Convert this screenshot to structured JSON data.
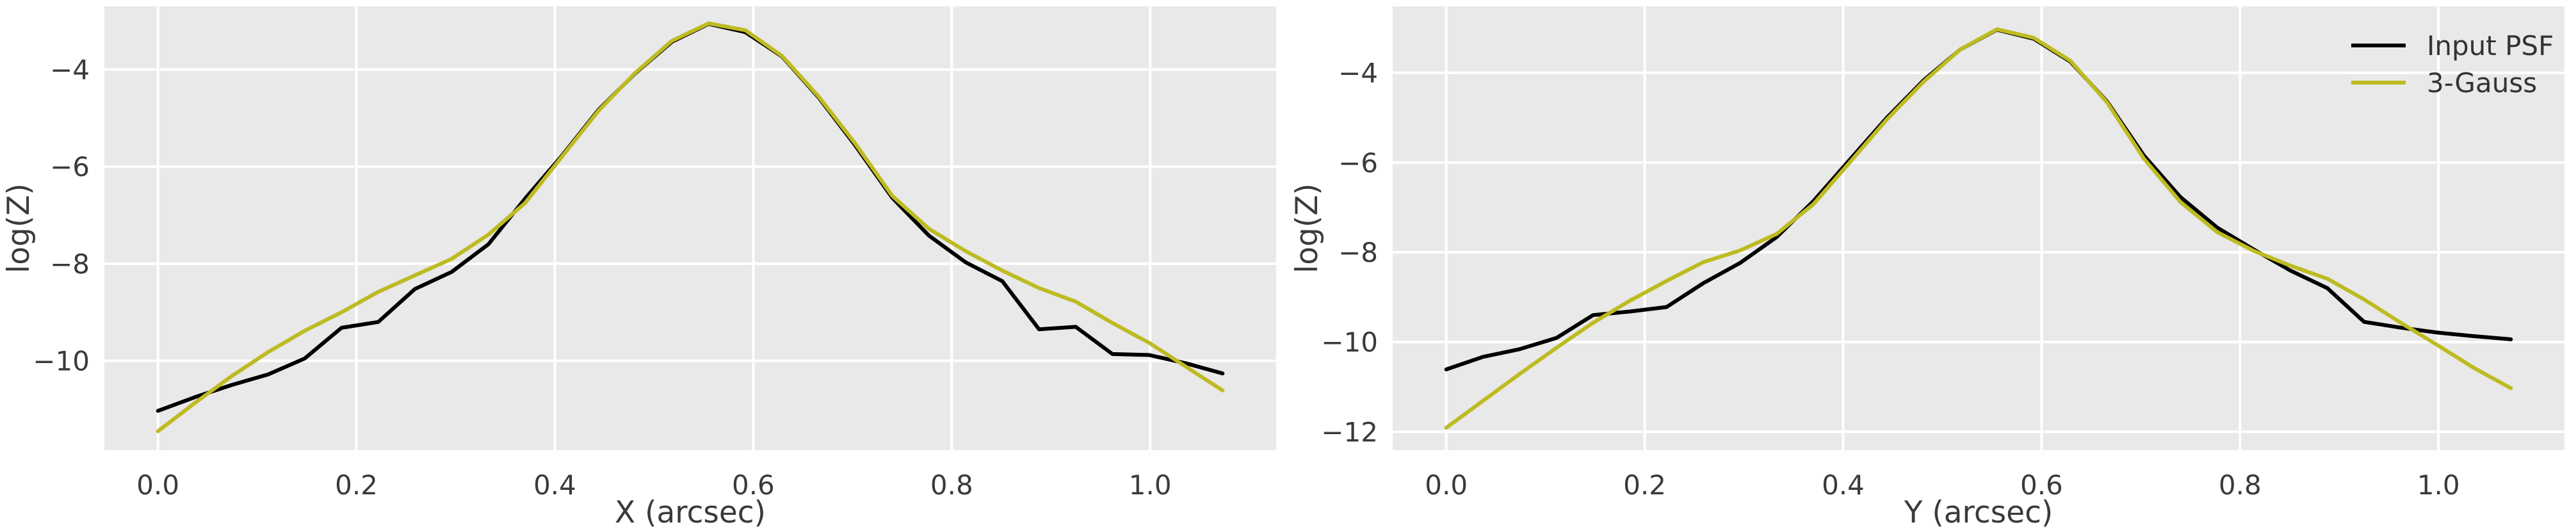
{
  "figure": {
    "background": "#ffffff",
    "axes_background": "#e9e9e9",
    "grid_color": "#ffffff",
    "text_color": "#3a3a3a",
    "curve_black": "#000000",
    "curve_yellow": "#bdbb22",
    "legend_entries": [
      {
        "label": "Input PSF",
        "color": "#000000"
      },
      {
        "label": "3-Gauss",
        "color": "#bdbb22"
      }
    ]
  },
  "chart_data": [
    {
      "type": "line",
      "title": "",
      "xlabel": "X (arcsec)",
      "ylabel": "log(Z)",
      "grid": true,
      "legend": null,
      "xlim": [
        -0.054,
        1.127
      ],
      "ylim": [
        -11.84,
        -2.7
      ],
      "xticks": [
        {
          "value": 0.0,
          "label": "0.0"
        },
        {
          "value": 0.2,
          "label": "0.2"
        },
        {
          "value": 0.4,
          "label": "0.4"
        },
        {
          "value": 0.6,
          "label": "0.6"
        },
        {
          "value": 0.8,
          "label": "0.8"
        },
        {
          "value": 1.0,
          "label": "1.0"
        }
      ],
      "yticks": [
        {
          "value": -4,
          "label": "−4"
        },
        {
          "value": -6,
          "label": "−6"
        },
        {
          "value": -8,
          "label": "−8"
        },
        {
          "value": -10,
          "label": "−10"
        }
      ],
      "x": [
        0.0,
        0.037,
        0.074,
        0.111,
        0.148,
        0.185,
        0.222,
        0.259,
        0.296,
        0.333,
        0.37,
        0.407,
        0.444,
        0.481,
        0.518,
        0.555,
        0.592,
        0.629,
        0.666,
        0.703,
        0.74,
        0.777,
        0.814,
        0.851,
        0.888,
        0.925,
        0.962,
        0.999,
        1.036,
        1.073
      ],
      "series": [
        {
          "name": "Input PSF",
          "color": "#000000",
          "values": [
            -11.03,
            -10.75,
            -10.5,
            -10.28,
            -9.95,
            -9.32,
            -9.2,
            -8.52,
            -8.17,
            -7.6,
            -6.66,
            -5.78,
            -4.83,
            -4.08,
            -3.43,
            -3.06,
            -3.23,
            -3.73,
            -4.58,
            -5.57,
            -6.64,
            -7.42,
            -7.97,
            -8.36,
            -9.35,
            -9.3,
            -9.86,
            -9.88,
            -10.05,
            -10.26
          ]
        },
        {
          "name": "3-Gauss",
          "color": "#bdbb22",
          "values": [
            -11.45,
            -10.87,
            -10.32,
            -9.82,
            -9.38,
            -9.0,
            -8.58,
            -8.24,
            -7.9,
            -7.4,
            -6.75,
            -5.8,
            -4.85,
            -4.07,
            -3.41,
            -3.05,
            -3.19,
            -3.72,
            -4.56,
            -5.53,
            -6.6,
            -7.28,
            -7.74,
            -8.14,
            -8.5,
            -8.78,
            -9.22,
            -9.63,
            -10.12,
            -10.61
          ]
        }
      ]
    },
    {
      "type": "line",
      "title": "",
      "xlabel": "Y (arcsec)",
      "ylabel": "log(Z)",
      "grid": true,
      "legend": {
        "position": "upper right"
      },
      "xlim": [
        -0.054,
        1.127
      ],
      "ylim": [
        -12.41,
        -2.52
      ],
      "xticks": [
        {
          "value": 0.0,
          "label": "0.0"
        },
        {
          "value": 0.2,
          "label": "0.2"
        },
        {
          "value": 0.4,
          "label": "0.4"
        },
        {
          "value": 0.6,
          "label": "0.6"
        },
        {
          "value": 0.8,
          "label": "0.8"
        },
        {
          "value": 1.0,
          "label": "1.0"
        }
      ],
      "yticks": [
        {
          "value": -4,
          "label": "−4"
        },
        {
          "value": -6,
          "label": "−6"
        },
        {
          "value": -8,
          "label": "−8"
        },
        {
          "value": -10,
          "label": "−10"
        },
        {
          "value": -12,
          "label": "−12"
        }
      ],
      "x": [
        0.0,
        0.037,
        0.074,
        0.111,
        0.148,
        0.185,
        0.222,
        0.259,
        0.296,
        0.333,
        0.37,
        0.407,
        0.444,
        0.481,
        0.518,
        0.555,
        0.592,
        0.629,
        0.666,
        0.703,
        0.74,
        0.777,
        0.814,
        0.851,
        0.888,
        0.925,
        0.962,
        0.999,
        1.036,
        1.073
      ],
      "series": [
        {
          "name": "Input PSF",
          "color": "#000000",
          "values": [
            -10.61,
            -10.33,
            -10.16,
            -9.91,
            -9.4,
            -9.32,
            -9.22,
            -8.69,
            -8.24,
            -7.66,
            -6.86,
            -5.93,
            -5.0,
            -4.17,
            -3.48,
            -3.04,
            -3.24,
            -3.75,
            -4.64,
            -5.84,
            -6.77,
            -7.45,
            -7.94,
            -8.41,
            -8.8,
            -9.55,
            -9.68,
            -9.79,
            -9.87,
            -9.94
          ]
        },
        {
          "name": "3-Gauss",
          "color": "#bdbb22",
          "values": [
            -11.91,
            -11.31,
            -10.71,
            -10.13,
            -9.57,
            -9.08,
            -8.64,
            -8.22,
            -7.96,
            -7.59,
            -6.93,
            -5.99,
            -5.04,
            -4.2,
            -3.48,
            -3.03,
            -3.22,
            -3.73,
            -4.66,
            -5.91,
            -6.88,
            -7.55,
            -7.97,
            -8.3,
            -8.59,
            -9.05,
            -9.57,
            -10.07,
            -10.58,
            -11.03
          ]
        }
      ]
    }
  ]
}
